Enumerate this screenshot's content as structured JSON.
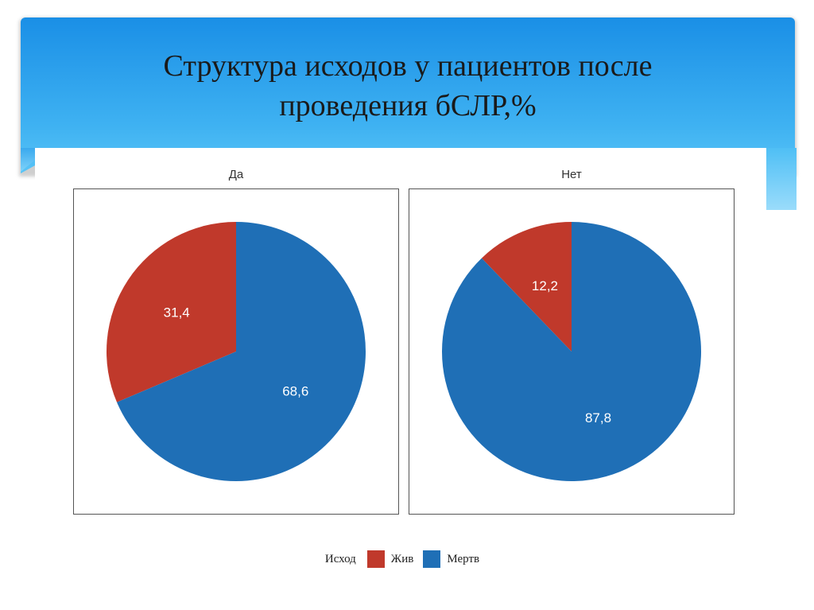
{
  "slide": {
    "title_line1": "Структура исходов у пациентов после",
    "title_line2": "проведения бСЛР,%"
  },
  "colors": {
    "banner": "#2ea3ee",
    "alive": "#c0392b",
    "dead": "#1f6fb6"
  },
  "chart_data": [
    {
      "type": "pie",
      "title": "Да",
      "labels": [
        "Жив",
        "Мертв"
      ],
      "values": [
        31.4,
        68.6
      ],
      "value_labels": [
        "31,4",
        "68,6"
      ],
      "colors": [
        "#c0392b",
        "#1f6fb6"
      ]
    },
    {
      "type": "pie",
      "title": "Нет",
      "labels": [
        "Жив",
        "Мертв"
      ],
      "values": [
        12.2,
        87.8
      ],
      "value_labels": [
        "12,2",
        "87,8"
      ],
      "colors": [
        "#c0392b",
        "#1f6fb6"
      ]
    }
  ],
  "legend": {
    "title": "Исход",
    "items": [
      "Жив",
      "Мертв"
    ],
    "placement": "bottom"
  }
}
